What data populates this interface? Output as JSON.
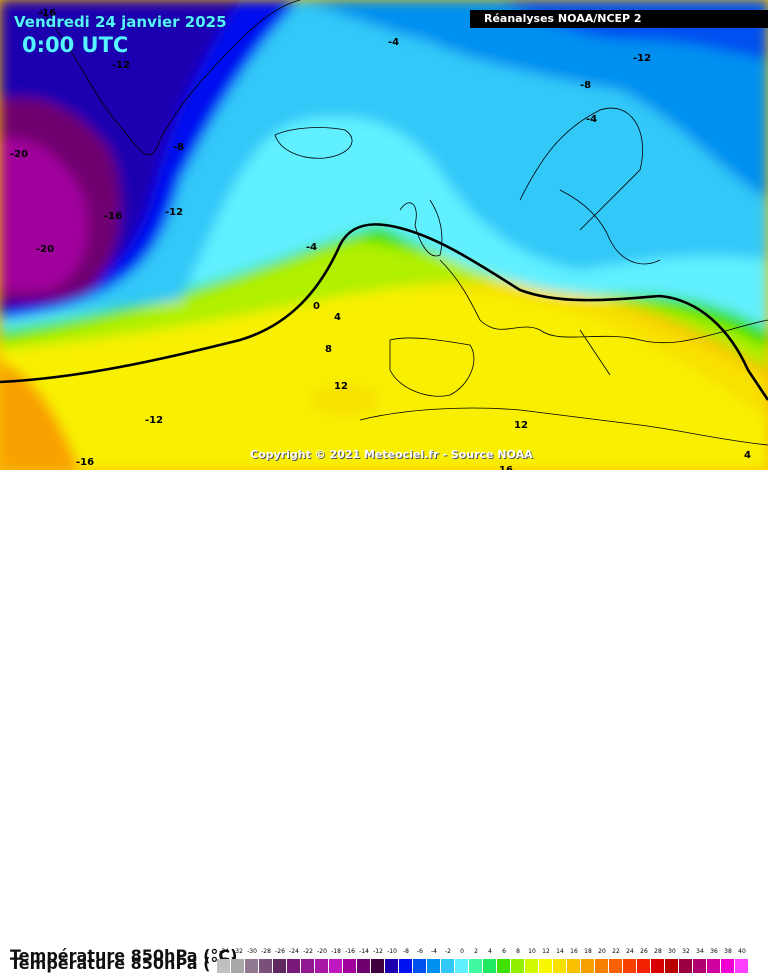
{
  "header": {
    "date": "Vendredi 24 janvier 2025",
    "time": "0:00 UTC",
    "source": "Réanalyses NOAA/NCEP 2"
  },
  "map": {
    "copyright": "Copyright © 2021 Meteociel.fr - Source NOAA",
    "isotherm_labels": [
      "-16",
      "-12",
      "-20",
      "-16",
      "-20",
      "-12",
      "-8",
      "-4",
      "-8",
      "-12",
      "-4",
      "-4",
      "0",
      "4",
      "8",
      "12",
      "-12",
      "-16",
      "12",
      "16",
      "4"
    ]
  },
  "legend": {
    "title": "Température 850hPa (°C)",
    "values": [
      "-34",
      "-32",
      "-30",
      "-28",
      "-26",
      "-24",
      "-22",
      "-20",
      "-18",
      "-16",
      "-14",
      "-12",
      "-10",
      "-8",
      "-6",
      "-4",
      "-2",
      "0",
      "2",
      "4",
      "6",
      "8",
      "10",
      "12",
      "14",
      "16",
      "18",
      "20",
      "22",
      "24",
      "26",
      "28",
      "30",
      "32",
      "34",
      "36",
      "38",
      "40"
    ],
    "colors": [
      "#c0c0c0",
      "#a8a8a8",
      "#907890",
      "#785078",
      "#602860",
      "#781878",
      "#901890",
      "#a818a8",
      "#c018c0",
      "#a0009c",
      "#700070",
      "#400040",
      "#1c00b0",
      "#0010f0",
      "#0050f0",
      "#0090f0",
      "#30c8f8",
      "#60f0ff",
      "#40f8a0",
      "#20e860",
      "#40e000",
      "#90f000",
      "#d0f800",
      "#f8f800",
      "#f8e000",
      "#f8c000",
      "#f8a000",
      "#f88000",
      "#f86000",
      "#f84000",
      "#f02000",
      "#d80000",
      "#b80000",
      "#980040",
      "#b00070",
      "#d000a0",
      "#f000d0",
      "#ff40ff"
    ]
  }
}
